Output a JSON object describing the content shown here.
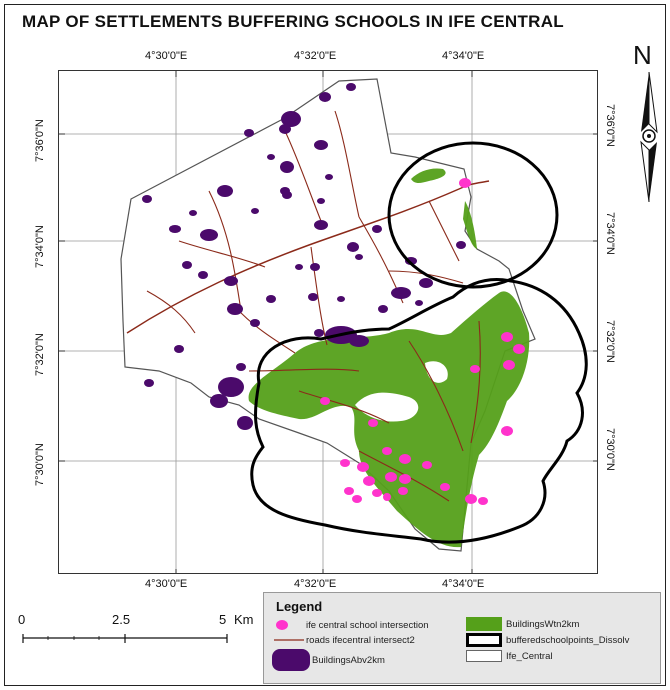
{
  "map": {
    "title": "MAP OF SETTLEMENTS BUFFERING SCHOOLS IN IFE CENTRAL",
    "north_label": "N",
    "longitude_ticks": [
      "4°30'0\"E",
      "4°32'0\"E",
      "4°34'0\"E"
    ],
    "latitude_ticks": [
      "7°36'0\"N",
      "7°34'0\"N",
      "7°32'0\"N",
      "7°30'0\"N"
    ],
    "scale_bar": {
      "labels": [
        "0",
        "2.5",
        "5"
      ],
      "unit": "Km"
    },
    "legend": {
      "title": "Legend",
      "items": {
        "school_intersection": "ife central school intersection",
        "roads": "roads ifecentral intersect2",
        "buildings_abv": "BuildingsAbv2km",
        "buildings_wtn": "BuildingsWtn2km",
        "buffer": "bufferedschoolpoints_Dissolv",
        "boundary": "Ife_Central"
      }
    },
    "colors": {
      "school_points": "#ff33cc",
      "roads": "#8b2a1a",
      "buildings_abv": "#4b0a6b",
      "buildings_wtn": "#55a01a",
      "buffer_outline": "#000000",
      "boundary_fill": "#ffffff"
    }
  }
}
